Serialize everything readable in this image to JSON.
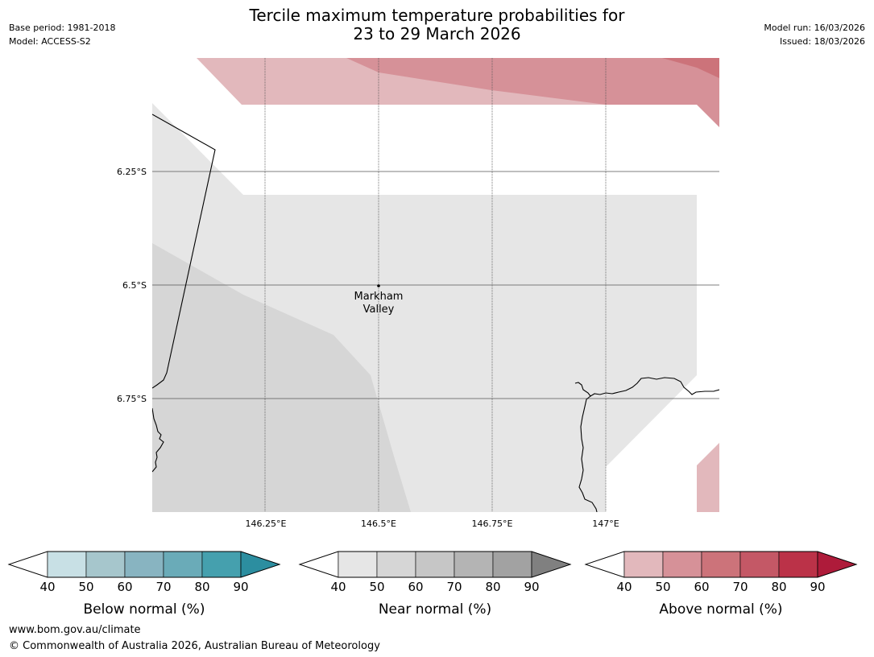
{
  "title": {
    "line1": "Tercile maximum temperature probabilities for",
    "line2": "23 to 29 March 2026"
  },
  "meta_left": {
    "base_period": "Base period: 1981-2018",
    "model": "Model: ACCESS-S2"
  },
  "meta_right": {
    "model_run": "Model run: 16/03/2026",
    "issued": "Issued: 18/03/2026"
  },
  "map": {
    "lat_labels": [
      "6.25°S",
      "6.5°S",
      "6.75°S"
    ],
    "lon_labels": [
      "146.25°E",
      "146.5°E",
      "146.75°E",
      "147°E"
    ],
    "place_name_line1": "Markham",
    "place_name_line2": "Valley",
    "colors": {
      "near_40": "#e6e6e6",
      "near_50": "#d6d6d6",
      "above_40": "#e2b8bc",
      "above_50": "#d69198",
      "above_60": "#cc737a"
    }
  },
  "legends": [
    {
      "id": "below",
      "title": "Below normal (%)",
      "ticks": [
        "40",
        "50",
        "60",
        "70",
        "80",
        "90"
      ],
      "colors": [
        "#ffffff",
        "#c8e0e5",
        "#a6c6cc",
        "#88b4c1",
        "#6aabb8",
        "#45a0ae",
        "#2c8ea0"
      ]
    },
    {
      "id": "near",
      "title": "Near normal (%)",
      "ticks": [
        "40",
        "50",
        "60",
        "70",
        "80",
        "90"
      ],
      "colors": [
        "#ffffff",
        "#e6e6e6",
        "#d6d6d6",
        "#c6c6c6",
        "#b4b4b4",
        "#a2a2a2",
        "#808080"
      ]
    },
    {
      "id": "above",
      "title": "Above normal (%)",
      "ticks": [
        "40",
        "50",
        "60",
        "70",
        "80",
        "90"
      ],
      "colors": [
        "#ffffff",
        "#e2b8bc",
        "#d69198",
        "#cc737a",
        "#c45866",
        "#bb3248",
        "#ae1b3a"
      ]
    }
  ],
  "footer": {
    "url": "www.bom.gov.au/climate",
    "copyright": "© Commonwealth of Australia 2026, Australian Bureau of Meteorology"
  }
}
